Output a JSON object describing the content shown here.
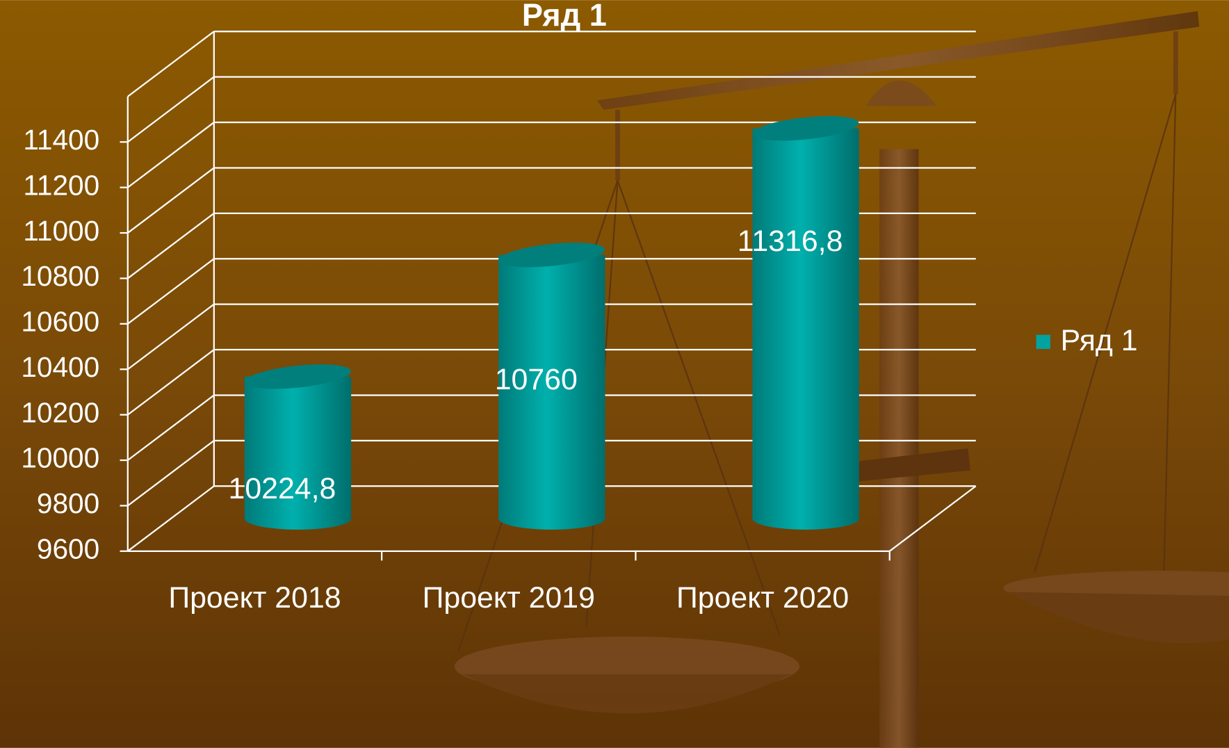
{
  "chart_data": {
    "type": "bar",
    "title": "Ряд 1",
    "categories": [
      "Проект 2018",
      "Проект 2019",
      "Проект 2020"
    ],
    "series": [
      {
        "name": "Ряд 1",
        "color": "#00a3a0",
        "values": [
          10224.8,
          10760,
          11316.8
        ],
        "value_labels": [
          "10224,8",
          "10760",
          "11316,8"
        ]
      }
    ],
    "ylim": [
      9600,
      11600
    ],
    "yticks": [
      9600,
      9800,
      10000,
      10200,
      10400,
      10600,
      10800,
      11000,
      11200,
      11400
    ],
    "grid": true,
    "legend": "right"
  }
}
